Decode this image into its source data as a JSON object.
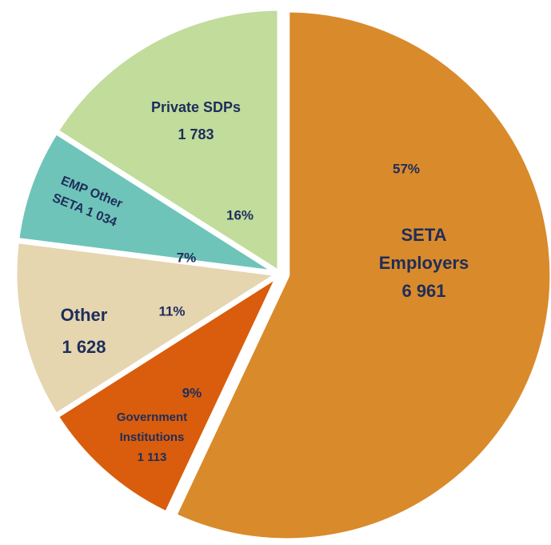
{
  "chart_data": {
    "type": "pie",
    "labels": [
      [
        "SETA",
        "Employers",
        "6 961"
      ],
      [
        "Government",
        "Institutions",
        "1 113"
      ],
      [
        "Other",
        "1 628"
      ],
      [
        "EMP Other",
        "SETA 1 034"
      ],
      [
        "Private SDPs",
        "1 783"
      ]
    ],
    "values": [
      57,
      9,
      11,
      7,
      16
    ],
    "value_labels": [
      "57%",
      "9%",
      "11%",
      "7%",
      "16%"
    ],
    "colors": [
      "#d98a2b",
      "#d95d0c",
      "#e5d6b0",
      "#6fc4b9",
      "#c1dc9b"
    ]
  }
}
